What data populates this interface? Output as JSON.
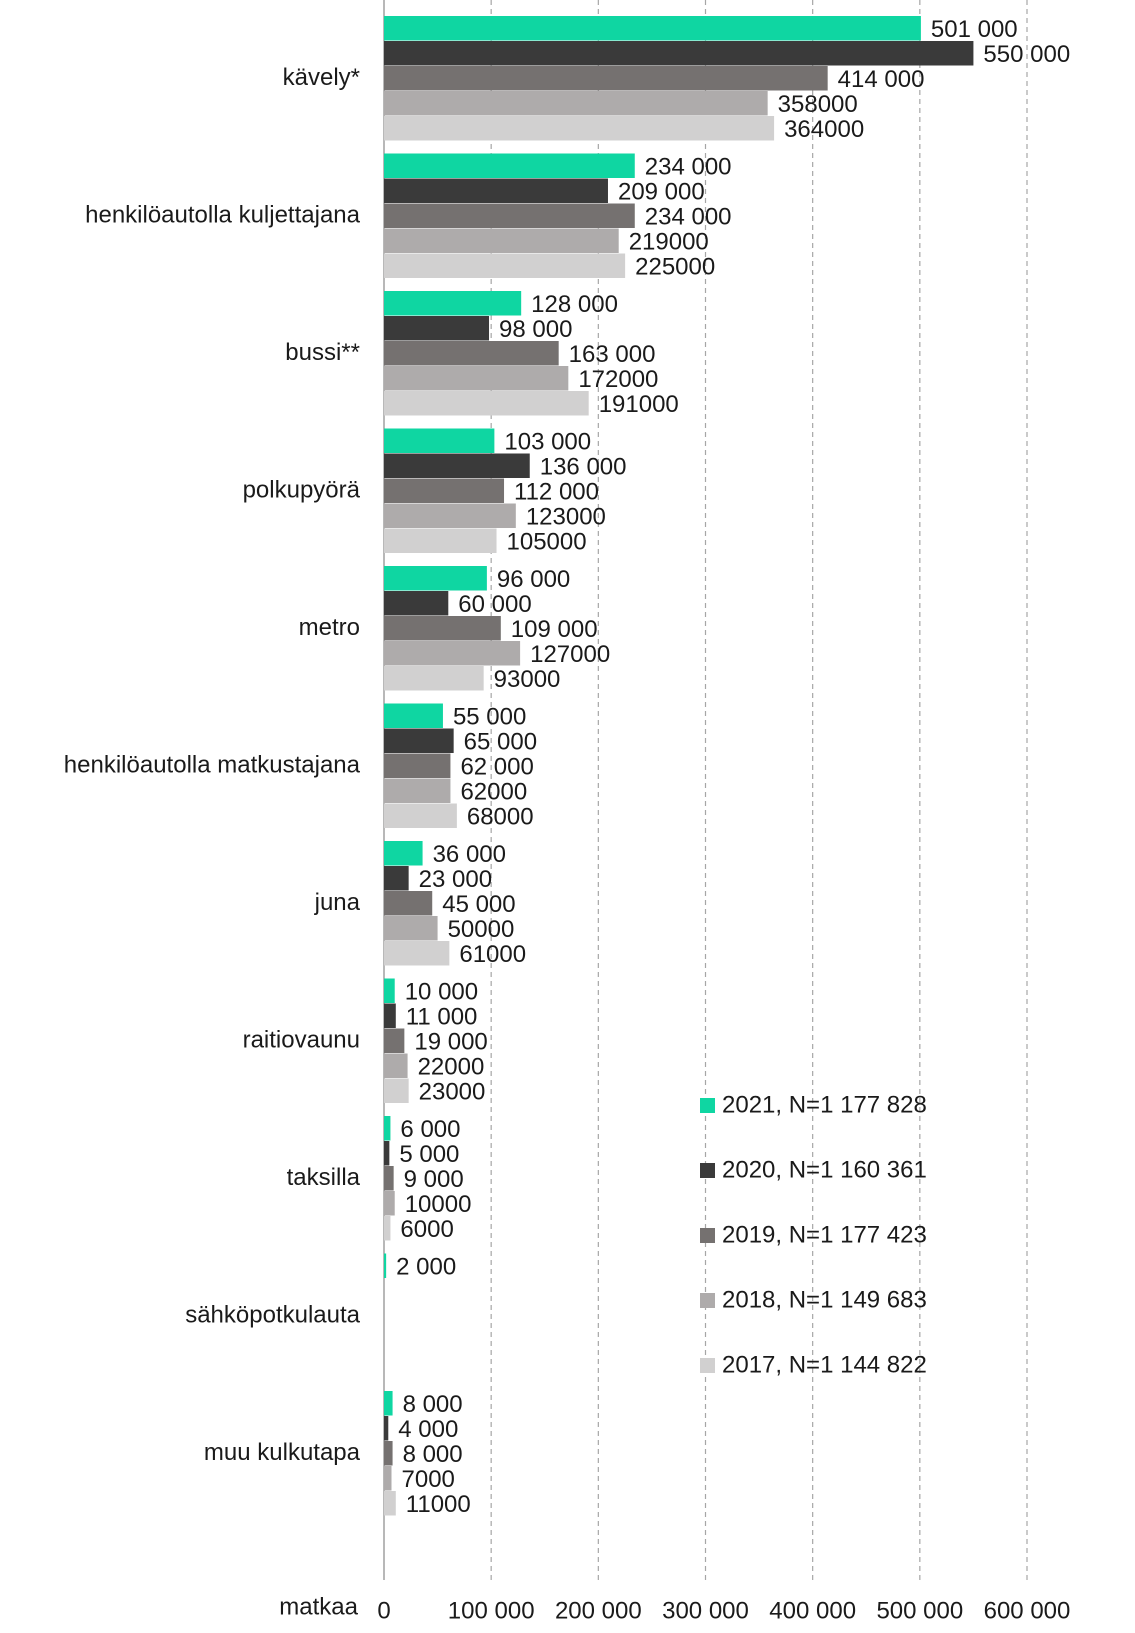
{
  "chart_data": {
    "type": "hbar",
    "categories": [
      "kävely*",
      "henkilöautolla kuljettajana",
      "bussi**",
      "polkupyörä",
      "metro",
      "henkilöautolla matkustajana",
      "juna",
      "raitiovaunu",
      "taksilla",
      "sähköpotkulauta",
      "muu kulkutapa"
    ],
    "series": [
      {
        "name": "2021, N=1 177 828",
        "color": "#0fd6a2",
        "values": [
          501000,
          234000,
          128000,
          103000,
          96000,
          55000,
          36000,
          10000,
          6000,
          2000,
          8000
        ],
        "value_labels": [
          "501 000",
          "234 000",
          "128 000",
          "103 000",
          "96 000",
          "55 000",
          "36 000",
          "10 000",
          "6 000",
          "2 000",
          "8 000"
        ]
      },
      {
        "name": "2020, N=1 160 361",
        "color": "#3a3a3a",
        "values": [
          550000,
          209000,
          98000,
          136000,
          60000,
          65000,
          23000,
          11000,
          5000,
          null,
          4000
        ],
        "value_labels": [
          "550 000",
          "209 000",
          "98 000",
          "136 000",
          "60 000",
          "65 000",
          "23 000",
          "11 000",
          "5 000",
          null,
          "4 000"
        ]
      },
      {
        "name": "2019, N=1 177 423",
        "color": "#757170",
        "values": [
          414000,
          234000,
          163000,
          112000,
          109000,
          62000,
          45000,
          19000,
          9000,
          null,
          8000
        ],
        "value_labels": [
          "414 000",
          "234 000",
          "163 000",
          "112 000",
          "109 000",
          "62 000",
          "45 000",
          "19 000",
          "9 000",
          null,
          "8 000"
        ]
      },
      {
        "name": "2018, N=1 149 683",
        "color": "#aeabab",
        "values": [
          358000,
          219000,
          172000,
          123000,
          127000,
          62000,
          50000,
          22000,
          10000,
          null,
          7000
        ]
      },
      {
        "name": "2017, N=1 144 822",
        "color": "#d1d0d0",
        "values": [
          364000,
          225000,
          191000,
          105000,
          93000,
          68000,
          61000,
          23000,
          6000,
          null,
          11000
        ]
      }
    ],
    "xlabel": "matkaa",
    "xlim": [
      0,
      600000
    ],
    "xticks": [
      0,
      {
        "value": 100000,
        "label": "100 000"
      },
      {
        "value": 200000,
        "label": "200 000"
      },
      {
        "value": 300000,
        "label": "300 000"
      },
      {
        "value": 400000,
        "label": "400 000"
      },
      {
        "value": 500000,
        "label": "500 000"
      },
      {
        "value": 600000,
        "label": "600 000"
      }
    ],
    "grid": true,
    "legend": "lower right"
  }
}
